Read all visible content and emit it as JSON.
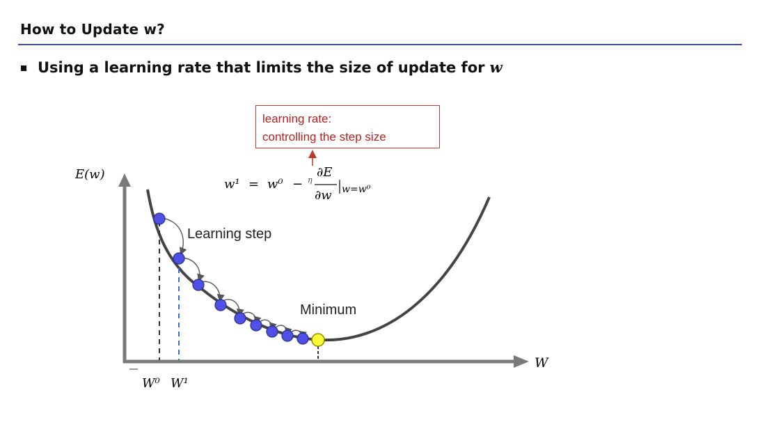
{
  "slide": {
    "title": "How to Update w?",
    "bullet_text": "Using a learning rate that limits the size of update for",
    "bullet_var": "w"
  },
  "annotation_box": {
    "line1": "learning rate:",
    "line2": "controlling the step size",
    "color": "#b22020"
  },
  "formula": {
    "lhs": "w¹",
    "equals": "=",
    "w0": "w⁰",
    "minus": "−",
    "eta": "η",
    "numerator": "∂E",
    "denominator": "∂w",
    "evaluated_at": "w=w⁰"
  },
  "diagram": {
    "y_axis_label": "E(w)",
    "x_axis_label": "W",
    "x_tick_w0": "W⁰",
    "x_tick_w1": "W¹",
    "learning_step_label": "Learning step",
    "minimum_label": "Minimum",
    "colors": {
      "step_points": "#5050e6",
      "minimum_point": "#ffff33",
      "curve": "#444444",
      "axis": "#7a7a7a",
      "w1_dash": "#3a6fd0"
    }
  }
}
